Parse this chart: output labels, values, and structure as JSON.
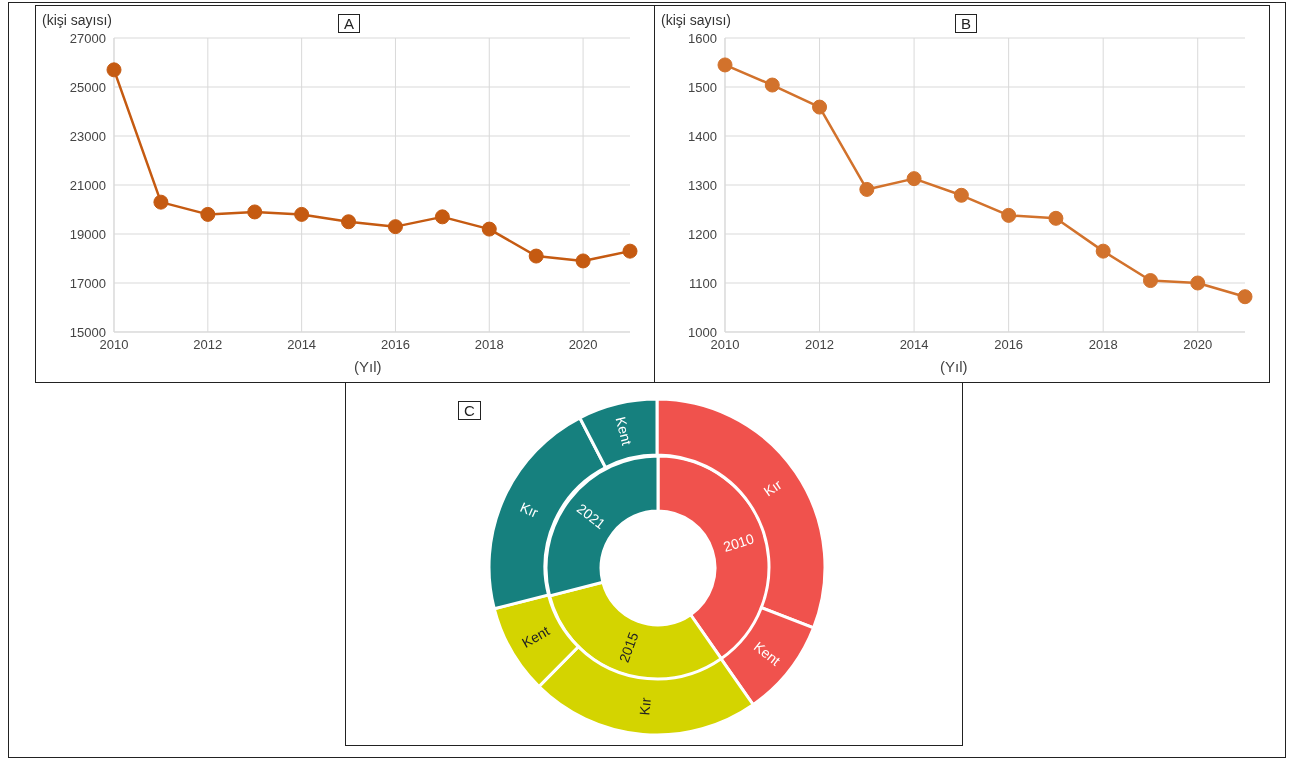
{
  "chart_data": [
    {
      "type": "line",
      "title": "A",
      "ylabel": "(kişi sayısı)",
      "xlabel": "(Yıl)",
      "x": [
        2010,
        2011,
        2012,
        2013,
        2014,
        2015,
        2016,
        2017,
        2018,
        2019,
        2020,
        2021
      ],
      "series": [
        {
          "color": "#c55a11",
          "values": [
            25700,
            20300,
            19800,
            19900,
            19800,
            19500,
            19300,
            19700,
            19200,
            18100,
            17900,
            18300
          ]
        }
      ],
      "xlim": [
        2010,
        2021
      ],
      "xticks": [
        2010,
        2012,
        2014,
        2016,
        2018,
        2020
      ],
      "ylim": [
        15000,
        27000
      ],
      "yticks": [
        15000,
        17000,
        19000,
        21000,
        23000,
        25000,
        27000
      ],
      "grid": true,
      "marker": "circle"
    },
    {
      "type": "line",
      "title": "B",
      "ylabel": "(kişi sayısı)",
      "xlabel": "(Yıl)",
      "x": [
        2010,
        2011,
        2012,
        2013,
        2014,
        2015,
        2016,
        2017,
        2018,
        2019,
        2020,
        2021
      ],
      "series": [
        {
          "color": "#d2722c",
          "values": [
            1545,
            1504,
            1459,
            1291,
            1313,
            1279,
            1238,
            1232,
            1165,
            1105,
            1100,
            1072
          ]
        }
      ],
      "xlim": [
        2010,
        2021
      ],
      "xticks": [
        2010,
        2012,
        2014,
        2016,
        2018,
        2020
      ],
      "ylim": [
        1000,
        1600
      ],
      "yticks": [
        1000,
        1100,
        1200,
        1300,
        1400,
        1500,
        1600
      ],
      "grid": true,
      "marker": "circle"
    },
    {
      "type": "donut",
      "title": "C",
      "categories": [
        "2010",
        "2015",
        "2021"
      ],
      "values": [
        40.3,
        30.7,
        29.0
      ],
      "colors": [
        "#f0524d",
        "#d4d400",
        "#16807e"
      ]
    },
    {
      "type": "donut",
      "categories": [
        "Kır",
        "Kent",
        "Kır",
        "Kent",
        "Kır",
        "Kent"
      ],
      "values": [
        30.9,
        9.4,
        22.1,
        8.6,
        21.4,
        7.6
      ],
      "colors": [
        "#f0524d",
        "#f0524d",
        "#d4d400",
        "#d4d400",
        "#16807e",
        "#16807e"
      ]
    }
  ]
}
